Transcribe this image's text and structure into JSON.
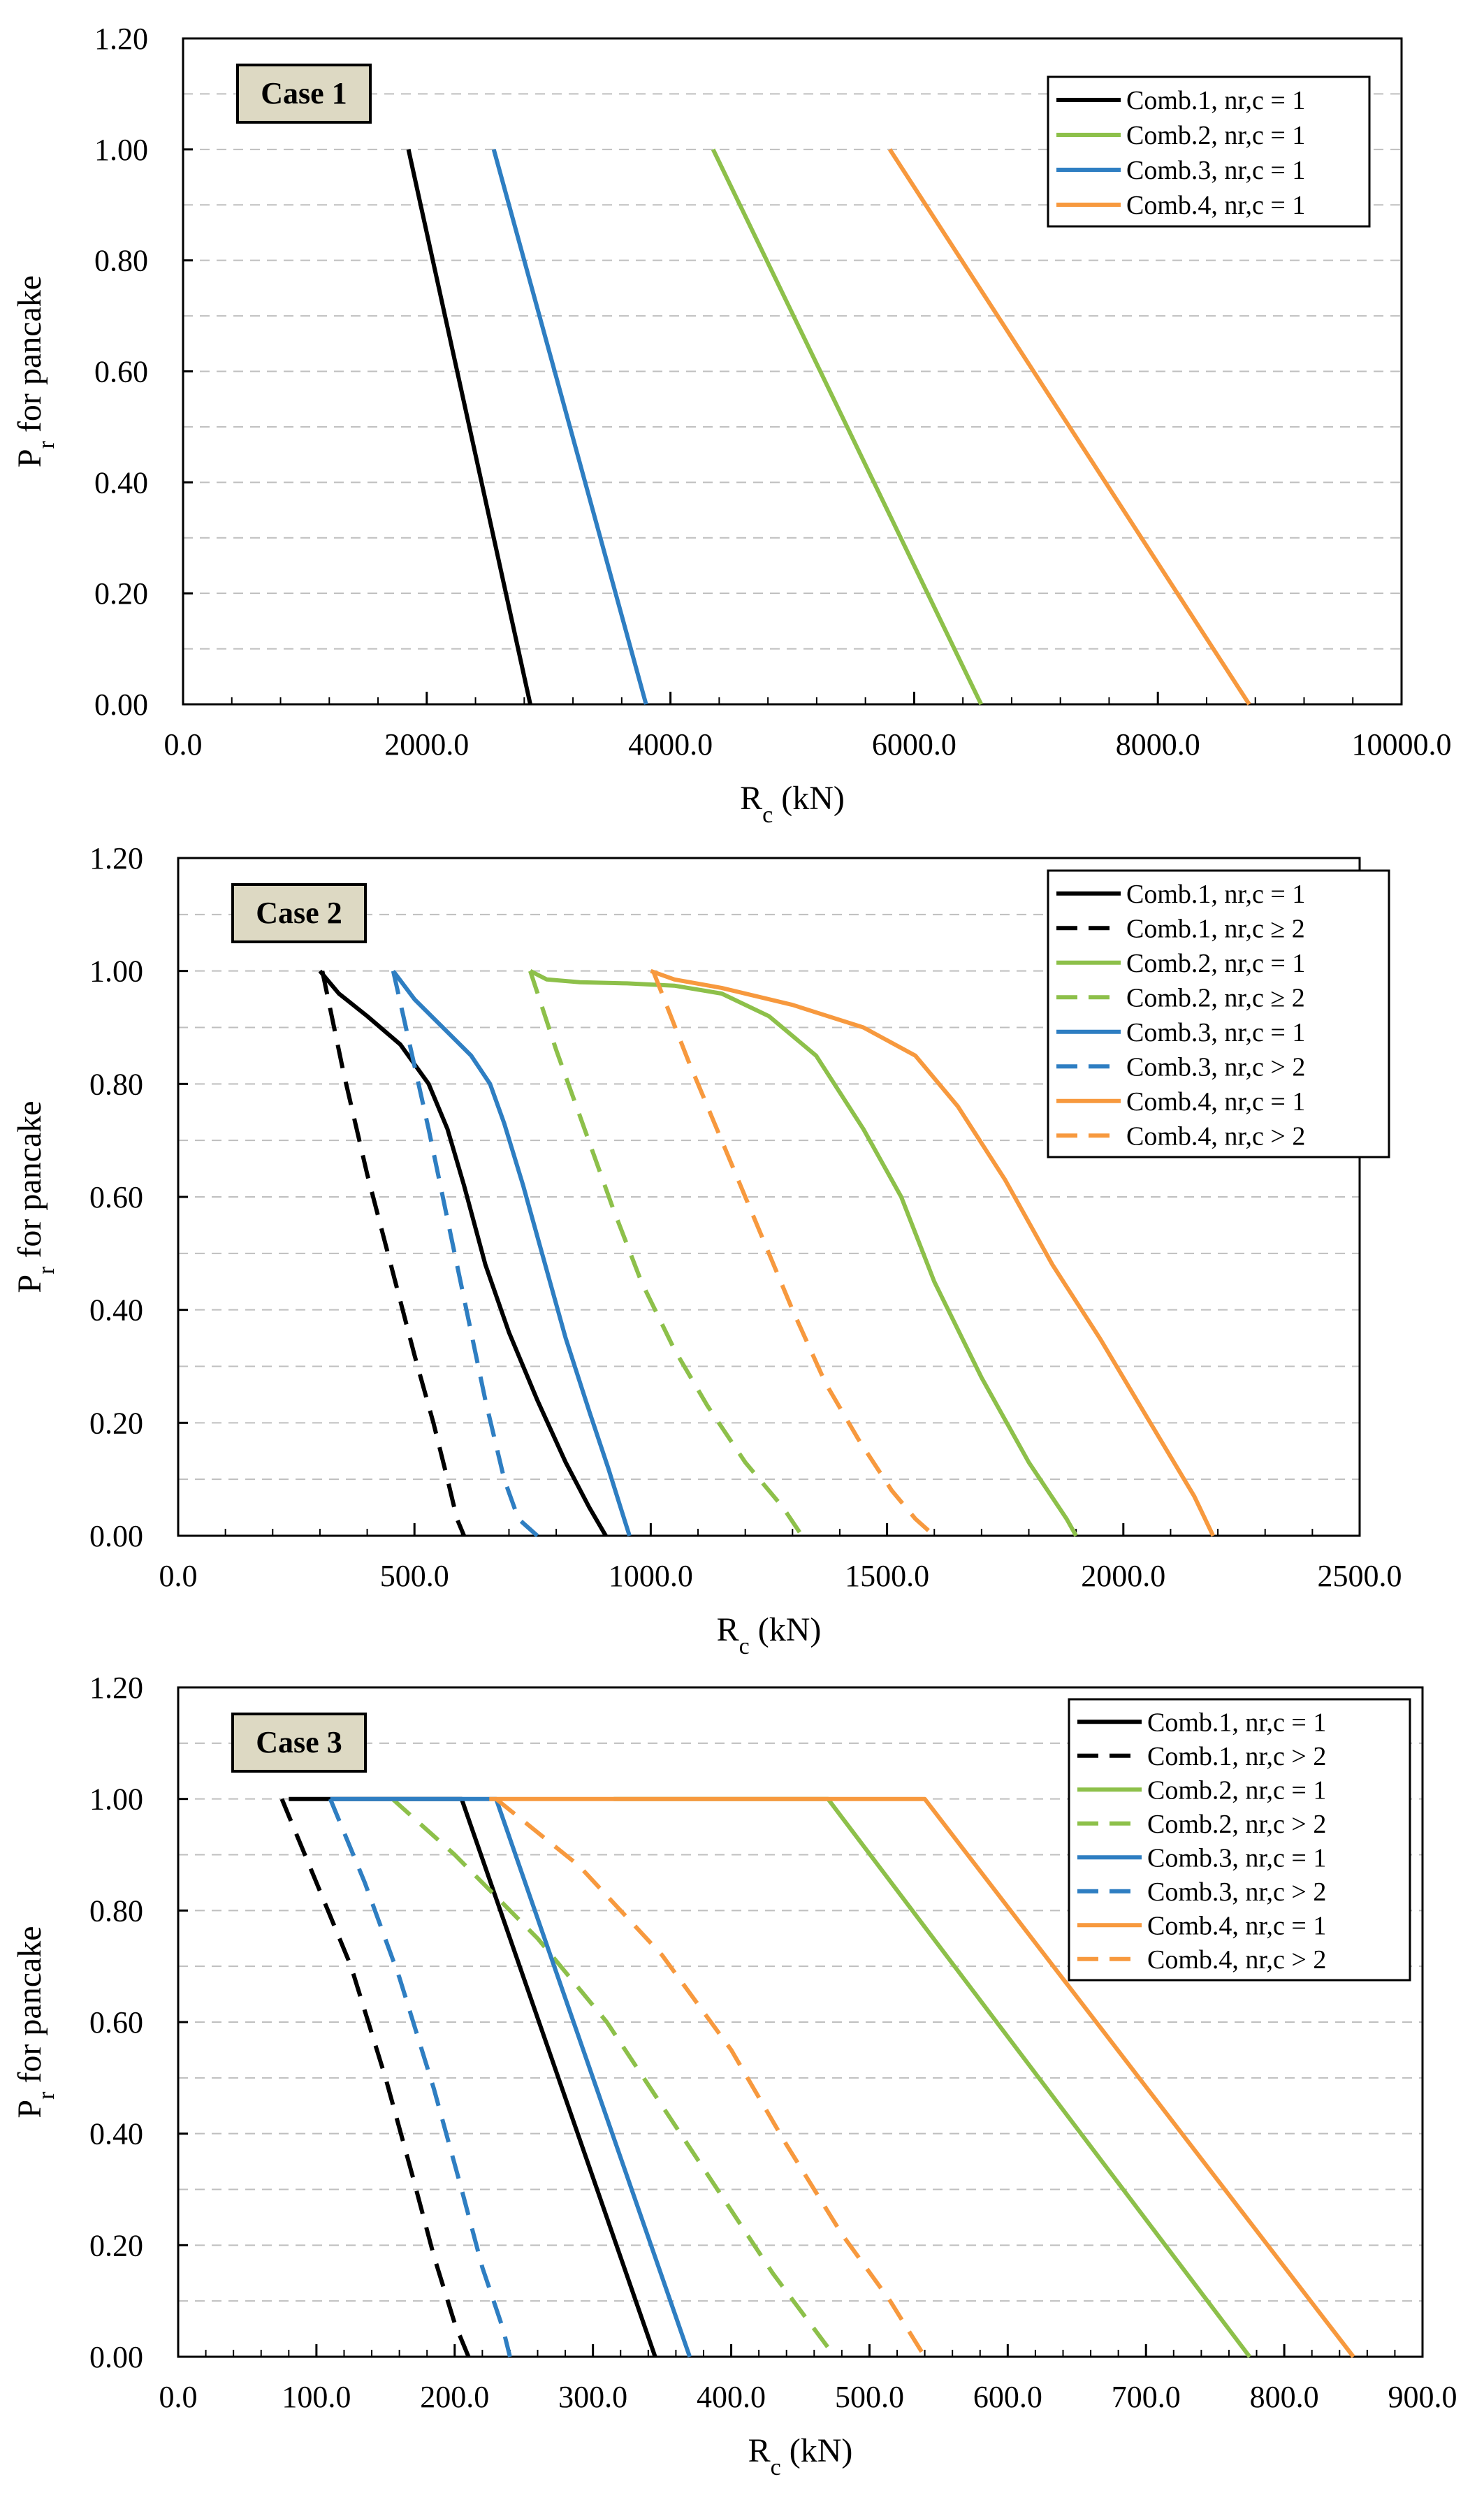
{
  "colors": {
    "comb1": "#000000",
    "comb2": "#8DC04A",
    "comb3": "#2E7EC2",
    "comb4": "#F7993E",
    "grid": "#BFBFBF",
    "case_box": "#DDD9C3"
  },
  "chart_data": [
    {
      "type": "line",
      "title": "Case 1",
      "xlabel": "Rc (kN)",
      "ylabel": "Pr for pancake",
      "xlim": [
        0,
        10000
      ],
      "ylim": [
        0,
        1.2
      ],
      "x_ticks": [
        "0.0",
        "2000.0",
        "4000.0",
        "6000.0",
        "8000.0",
        "10000.0"
      ],
      "y_ticks": [
        "0.00",
        "0.20",
        "0.40",
        "0.60",
        "0.80",
        "1.00",
        "1.20"
      ],
      "legend_position": "top-right",
      "series": [
        {
          "name": "Comb.1, nr,c = 1",
          "color_key": "comb1",
          "style": "solid",
          "points": [
            [
              1850,
              1.0
            ],
            [
              2850,
              0.0
            ]
          ]
        },
        {
          "name": "Comb.2, nr,c = 1",
          "color_key": "comb2",
          "style": "solid",
          "points": [
            [
              4350,
              1.0
            ],
            [
              6550,
              0.0
            ]
          ]
        },
        {
          "name": "Comb.3, nr,c = 1",
          "color_key": "comb3",
          "style": "solid",
          "points": [
            [
              2550,
              1.0
            ],
            [
              3800,
              0.0
            ]
          ]
        },
        {
          "name": "Comb.4, nr,c = 1",
          "color_key": "comb4",
          "style": "solid",
          "points": [
            [
              5800,
              1.0
            ],
            [
              8750,
              0.0
            ]
          ]
        }
      ]
    },
    {
      "type": "line",
      "title": "Case 2",
      "xlabel": "Rc (kN)",
      "ylabel": "Pr for pancake",
      "xlim": [
        0,
        2500
      ],
      "ylim": [
        0,
        1.2
      ],
      "x_ticks": [
        "0.0",
        "500.0",
        "1000.0",
        "1500.0",
        "2000.0",
        "2500.0"
      ],
      "y_ticks": [
        "0.00",
        "0.20",
        "0.40",
        "0.60",
        "0.80",
        "1.00",
        "1.20"
      ],
      "legend_position": "top-right",
      "series": [
        {
          "name": "Comb.1, nr,c = 1",
          "color_key": "comb1",
          "style": "solid",
          "points": [
            [
              300,
              1.0
            ],
            [
              340,
              0.96
            ],
            [
              400,
              0.92
            ],
            [
              470,
              0.87
            ],
            [
              530,
              0.8
            ],
            [
              570,
              0.72
            ],
            [
              605,
              0.62
            ],
            [
              650,
              0.48
            ],
            [
              700,
              0.36
            ],
            [
              760,
              0.24
            ],
            [
              820,
              0.13
            ],
            [
              870,
              0.05
            ],
            [
              905,
              0.0
            ]
          ]
        },
        {
          "name": "Comb.1, nr,c ≥ 2",
          "color_key": "comb1",
          "style": "dashed",
          "points": [
            [
              305,
              1.0
            ],
            [
              350,
              0.82
            ],
            [
              400,
              0.64
            ],
            [
              450,
              0.48
            ],
            [
              500,
              0.32
            ],
            [
              540,
              0.2
            ],
            [
              570,
              0.1
            ],
            [
              590,
              0.03
            ],
            [
              605,
              0.0
            ]
          ]
        },
        {
          "name": "Comb.2, nr,c = 1",
          "color_key": "comb2",
          "style": "solid",
          "points": [
            [
              745,
              1.0
            ],
            [
              780,
              0.985
            ],
            [
              850,
              0.98
            ],
            [
              950,
              0.978
            ],
            [
              1050,
              0.974
            ],
            [
              1150,
              0.96
            ],
            [
              1250,
              0.92
            ],
            [
              1350,
              0.85
            ],
            [
              1450,
              0.72
            ],
            [
              1530,
              0.6
            ],
            [
              1600,
              0.45
            ],
            [
              1700,
              0.28
            ],
            [
              1800,
              0.13
            ],
            [
              1880,
              0.03
            ],
            [
              1900,
              0.0
            ]
          ]
        },
        {
          "name": "Comb.2, nr,c ≥ 2",
          "color_key": "comb2",
          "style": "dashed",
          "points": [
            [
              745,
              1.0
            ],
            [
              800,
              0.86
            ],
            [
              860,
              0.72
            ],
            [
              920,
              0.58
            ],
            [
              980,
              0.45
            ],
            [
              1050,
              0.33
            ],
            [
              1120,
              0.23
            ],
            [
              1200,
              0.13
            ],
            [
              1280,
              0.05
            ],
            [
              1320,
              0.0
            ]
          ]
        },
        {
          "name": "Comb.3, nr,c = 1",
          "color_key": "comb3",
          "style": "solid",
          "points": [
            [
              455,
              1.0
            ],
            [
              500,
              0.95
            ],
            [
              560,
              0.9
            ],
            [
              620,
              0.85
            ],
            [
              660,
              0.8
            ],
            [
              690,
              0.73
            ],
            [
              730,
              0.62
            ],
            [
              770,
              0.5
            ],
            [
              820,
              0.35
            ],
            [
              870,
              0.22
            ],
            [
              910,
              0.12
            ],
            [
              940,
              0.04
            ],
            [
              955,
              0.0
            ]
          ]
        },
        {
          "name": "Comb.3, nr,c > 2",
          "color_key": "comb3",
          "style": "dashed",
          "points": [
            [
              455,
              1.0
            ],
            [
              490,
              0.87
            ],
            [
              530,
              0.72
            ],
            [
              570,
              0.56
            ],
            [
              610,
              0.4
            ],
            [
              650,
              0.24
            ],
            [
              690,
              0.1
            ],
            [
              720,
              0.03
            ],
            [
              760,
              0.0
            ]
          ]
        },
        {
          "name": "Comb.4, nr,c = 1",
          "color_key": "comb4",
          "style": "solid",
          "points": [
            [
              1000,
              1.0
            ],
            [
              1050,
              0.985
            ],
            [
              1150,
              0.97
            ],
            [
              1300,
              0.94
            ],
            [
              1450,
              0.9
            ],
            [
              1560,
              0.85
            ],
            [
              1650,
              0.76
            ],
            [
              1750,
              0.63
            ],
            [
              1850,
              0.48
            ],
            [
              1950,
              0.35
            ],
            [
              2050,
              0.21
            ],
            [
              2150,
              0.07
            ],
            [
              2190,
              0.0
            ]
          ]
        },
        {
          "name": "Comb.4, nr,c > 2",
          "color_key": "comb4",
          "style": "dashed",
          "points": [
            [
              1005,
              1.0
            ],
            [
              1080,
              0.84
            ],
            [
              1150,
              0.7
            ],
            [
              1230,
              0.54
            ],
            [
              1300,
              0.4
            ],
            [
              1370,
              0.27
            ],
            [
              1440,
              0.17
            ],
            [
              1510,
              0.08
            ],
            [
              1560,
              0.03
            ],
            [
              1600,
              0.0
            ]
          ]
        }
      ]
    },
    {
      "type": "line",
      "title": "Case 3",
      "xlabel": "Rc (kN)",
      "ylabel": "Pr for pancake",
      "xlim": [
        0,
        900
      ],
      "ylim": [
        0,
        1.2
      ],
      "x_ticks": [
        "0.0",
        "100.0",
        "200.0",
        "300.0",
        "400.0",
        "500.0",
        "600.0",
        "700.0",
        "800.0",
        "900.0"
      ],
      "y_ticks": [
        "0.00",
        "0.20",
        "0.40",
        "0.60",
        "0.80",
        "1.00",
        "1.20"
      ],
      "legend_position": "top-right",
      "series": [
        {
          "name": "Comb.1, nr,c = 1",
          "color_key": "comb1",
          "style": "solid",
          "points": [
            [
              80,
              1.0
            ],
            [
              205,
              1.0
            ],
            [
              345,
              0.0
            ]
          ]
        },
        {
          "name": "Comb.1, nr,c > 2",
          "color_key": "comb1",
          "style": "dashed",
          "points": [
            [
              75,
              1.0
            ],
            [
              100,
              0.85
            ],
            [
              125,
              0.7
            ],
            [
              150,
              0.5
            ],
            [
              170,
              0.32
            ],
            [
              185,
              0.18
            ],
            [
              200,
              0.06
            ],
            [
              210,
              0.0
            ]
          ]
        },
        {
          "name": "Comb.2, nr,c = 1",
          "color_key": "comb2",
          "style": "solid",
          "points": [
            [
              315,
              1.0
            ],
            [
              470,
              1.0
            ],
            [
              775,
              0.0
            ]
          ]
        },
        {
          "name": "Comb.2, nr,c > 2",
          "color_key": "comb2",
          "style": "dashed",
          "points": [
            [
              155,
              1.0
            ],
            [
              200,
              0.9
            ],
            [
              260,
              0.75
            ],
            [
              310,
              0.6
            ],
            [
              350,
              0.45
            ],
            [
              390,
              0.3
            ],
            [
              430,
              0.15
            ],
            [
              460,
              0.05
            ],
            [
              475,
              0.0
            ]
          ]
        },
        {
          "name": "Comb.3, nr,c = 1",
          "color_key": "comb3",
          "style": "solid",
          "points": [
            [
              110,
              1.0
            ],
            [
              230,
              1.0
            ],
            [
              370,
              0.0
            ]
          ]
        },
        {
          "name": "Comb.3, nr,c > 2",
          "color_key": "comb3",
          "style": "dashed",
          "points": [
            [
              110,
              1.0
            ],
            [
              135,
              0.85
            ],
            [
              160,
              0.68
            ],
            [
              185,
              0.48
            ],
            [
              205,
              0.3
            ],
            [
              220,
              0.16
            ],
            [
              235,
              0.05
            ],
            [
              240,
              0.0
            ]
          ]
        },
        {
          "name": "Comb.4, nr,c = 1",
          "color_key": "comb4",
          "style": "solid",
          "points": [
            [
              225,
              1.0
            ],
            [
              540,
              1.0
            ],
            [
              850,
              0.0
            ]
          ]
        },
        {
          "name": "Comb.4, nr,c > 2",
          "color_key": "comb4",
          "style": "dashed",
          "points": [
            [
              230,
              1.0
            ],
            [
              290,
              0.88
            ],
            [
              350,
              0.72
            ],
            [
              400,
              0.55
            ],
            [
              440,
              0.38
            ],
            [
              480,
              0.22
            ],
            [
              515,
              0.1
            ],
            [
              540,
              0.0
            ]
          ]
        }
      ]
    }
  ]
}
